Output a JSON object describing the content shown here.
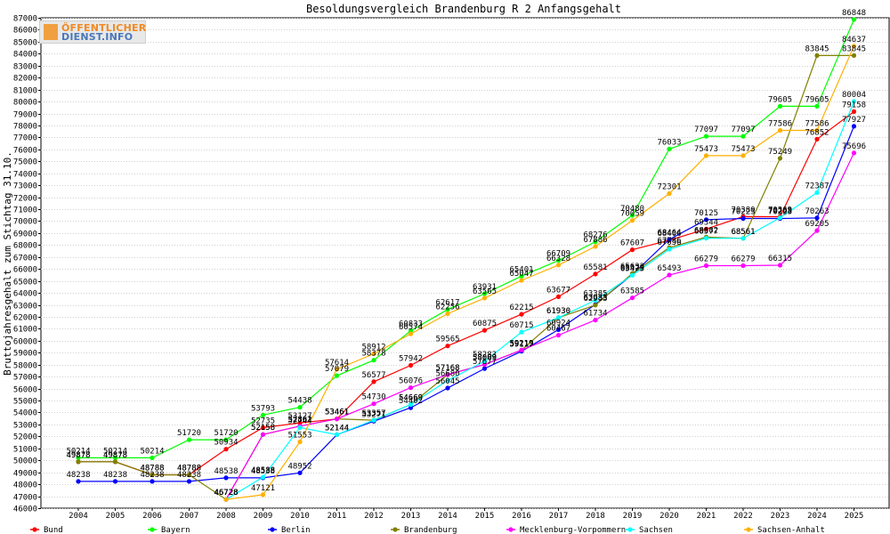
{
  "logo": {
    "line1": "ÖFFENTLICHER",
    "line2": "DIENST.INFO"
  },
  "chart_data": {
    "type": "line",
    "title": "Besoldungsvergleich Brandenburg R 2 Anfangsgehalt",
    "xlabel": "",
    "ylabel": "Bruttojahresgehalt zum Stichtag 31.10.",
    "x": [
      "2004",
      "2005",
      "2006",
      "2007",
      "2008",
      "2009",
      "2010",
      "2011",
      "2012",
      "2013",
      "2014",
      "2015",
      "2016",
      "2017",
      "2018",
      "2019",
      "2020",
      "2021",
      "2022",
      "2023",
      "2024",
      "2025"
    ],
    "ylim": [
      46000,
      87000
    ],
    "ytick_step": 1000,
    "grid": true,
    "legend_position": "bottom",
    "series": [
      {
        "name": "Bund",
        "color": "#ff0000",
        "values": [
          49878,
          49878,
          48788,
          48788,
          50934,
          52735,
          53127,
          53461,
          56577,
          57942,
          59565,
          60875,
          62215,
          63677,
          65581,
          67607,
          68406,
          69344,
          70380,
          70369,
          76852,
          79158
        ]
      },
      {
        "name": "Bayern",
        "color": "#00ff00",
        "values": [
          50214,
          50214,
          50214,
          51720,
          51720,
          53793,
          54438,
          57079,
          58378,
          60833,
          62617,
          63931,
          65401,
          66709,
          68276,
          70480,
          76033,
          77097,
          77097,
          79605,
          79605,
          86848
        ]
      },
      {
        "name": "Berlin",
        "color": "#0000ff",
        "values": [
          48238,
          48238,
          48238,
          48238,
          48538,
          48538,
          48952,
          52144,
          53271,
          54402,
          56045,
          57677,
          59117,
          60924,
          63035,
          65529,
          68464,
          70125,
          70223,
          70223,
          70263,
          77927
        ]
      },
      {
        "name": "Brandenburg",
        "color": "#808000",
        "values": [
          49878,
          49878,
          48788,
          48788,
          46728,
          52158,
          52862,
          53461,
          53357,
          54669,
          57168,
          58009,
          59219,
          61930,
          62983,
          65633,
          67786,
          68662,
          68561,
          75249,
          83845,
          83845
        ]
      },
      {
        "name": "Mecklenburg-Vorpommern",
        "color": "#ff00ff",
        "values": [
          null,
          null,
          null,
          null,
          46728,
          52158,
          52862,
          53461,
          54730,
          56076,
          57168,
          58009,
          59219,
          60467,
          61734,
          63585,
          65493,
          66279,
          66279,
          66315,
          69205,
          75696
        ]
      },
      {
        "name": "Sachsen",
        "color": "#00ffff",
        "values": [
          null,
          null,
          null,
          null,
          46728,
          48588,
          52744,
          52144,
          53357,
          54669,
          56680,
          58283,
          60715,
          61930,
          63385,
          65475,
          67656,
          68577,
          68561,
          70288,
          72387,
          80004
        ]
      },
      {
        "name": "Sachsen-Anhalt",
        "color": "#ffb000",
        "values": [
          null,
          null,
          null,
          null,
          46728,
          47121,
          51553,
          57614,
          58912,
          60574,
          62256,
          63565,
          65047,
          66328,
          67886,
          70059,
          72301,
          75473,
          75473,
          77586,
          77586,
          84637
        ]
      }
    ]
  }
}
